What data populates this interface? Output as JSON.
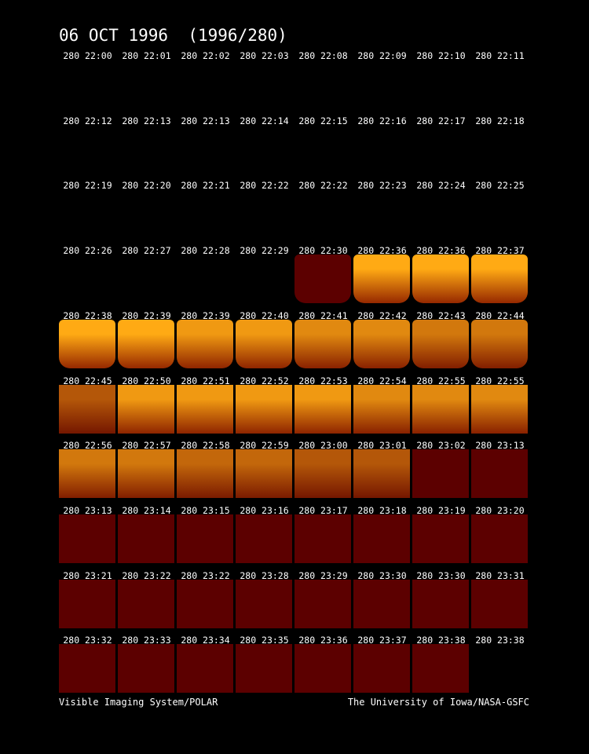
{
  "title": "06 OCT 1996  (1996/280)",
  "frames": [
    [
      "280 22:00",
      "280 22:01",
      "280 22:02",
      "280 22:03",
      "280 22:08",
      "280 22:09",
      "280 22:10",
      "280 22:11"
    ],
    [
      "280 22:12",
      "280 22:13",
      "280 22:13",
      "280 22:14",
      "280 22:15",
      "280 22:16",
      "280 22:17",
      "280 22:18"
    ],
    [
      "280 22:19",
      "280 22:20",
      "280 22:21",
      "280 22:22",
      "280 22:22",
      "280 22:23",
      "280 22:24",
      "280 22:25"
    ],
    [
      "280 22:26",
      "280 22:27",
      "280 22:28",
      "280 22:29",
      "280 22:30",
      "280 22:36",
      "280 22:36",
      "280 22:37"
    ],
    [
      "280 22:38",
      "280 22:39",
      "280 22:39",
      "280 22:40",
      "280 22:41",
      "280 22:42",
      "280 22:43",
      "280 22:44"
    ],
    [
      "280 22:45",
      "280 22:50",
      "280 22:51",
      "280 22:52",
      "280 22:53",
      "280 22:54",
      "280 22:55",
      "280 22:55"
    ],
    [
      "280 22:56",
      "280 22:57",
      "280 22:58",
      "280 22:59",
      "280 23:00",
      "280 23:01",
      "280 23:02",
      "280 23:13"
    ],
    [
      "280 23:13",
      "280 23:14",
      "280 23:15",
      "280 23:16",
      "280 23:17",
      "280 23:18",
      "280 23:19",
      "280 23:20"
    ],
    [
      "280 23:21",
      "280 23:22",
      "280 23:22",
      "280 23:28",
      "280 23:29",
      "280 23:30",
      "280 23:30",
      "280 23:31"
    ],
    [
      "280 23:32",
      "280 23:33",
      "280 23:34",
      "280 23:35",
      "280 23:36",
      "280 23:37",
      "280 23:38",
      "280 23:38"
    ]
  ],
  "footer": {
    "left": "Visible Imaging System/POLAR",
    "right": "The University of Iowa/NASA-GSFC"
  }
}
